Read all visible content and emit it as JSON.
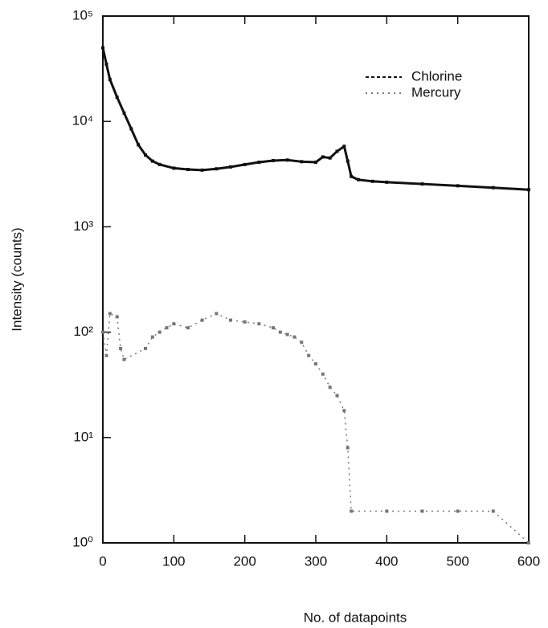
{
  "chart_data": {
    "type": "line",
    "x_label": "No. of datapoints",
    "y_label": "Intensity (counts)",
    "yscale": "log",
    "legend": "upper right",
    "xlim": [
      0,
      600
    ],
    "xticks": [
      0,
      100,
      200,
      300,
      400,
      500,
      600
    ],
    "ylim": [
      1,
      100000
    ],
    "yticks": [
      {
        "value": 1,
        "label": "10⁰"
      },
      {
        "value": 10,
        "label": "10¹"
      },
      {
        "value": 100,
        "label": "10²"
      },
      {
        "value": 1000,
        "label": "10³"
      },
      {
        "value": 10000,
        "label": "10⁴"
      },
      {
        "value": 100000,
        "label": "10⁵"
      }
    ],
    "series": [
      {
        "name": "Chlorine",
        "color": "#111111",
        "x": [
          0,
          5,
          10,
          20,
          30,
          40,
          50,
          60,
          70,
          80,
          100,
          120,
          140,
          160,
          180,
          200,
          220,
          240,
          260,
          280,
          300,
          310,
          320,
          330,
          340,
          345,
          350,
          360,
          380,
          400,
          450,
          500,
          550,
          600
        ],
        "values": [
          50000,
          35000,
          25000,
          17000,
          12000,
          8500,
          6000,
          4800,
          4200,
          3900,
          3600,
          3500,
          3450,
          3550,
          3700,
          3900,
          4100,
          4250,
          4300,
          4150,
          4100,
          4600,
          4500,
          5200,
          5800,
          4200,
          3000,
          2800,
          2700,
          2650,
          2550,
          2450,
          2350,
          2250
        ]
      },
      {
        "name": "Mercury",
        "color": "#777777",
        "x": [
          0,
          5,
          10,
          20,
          25,
          30,
          60,
          70,
          80,
          90,
          100,
          120,
          140,
          160,
          180,
          200,
          220,
          240,
          250,
          260,
          270,
          280,
          290,
          300,
          310,
          320,
          330,
          340,
          345,
          350,
          400,
          450,
          500,
          550,
          600
        ],
        "values": [
          100,
          60,
          150,
          140,
          70,
          55,
          70,
          90,
          100,
          110,
          120,
          110,
          130,
          150,
          130,
          125,
          120,
          110,
          100,
          95,
          90,
          80,
          60,
          50,
          40,
          30,
          25,
          18,
          8,
          2,
          2,
          2,
          2,
          2,
          1
        ]
      }
    ]
  }
}
